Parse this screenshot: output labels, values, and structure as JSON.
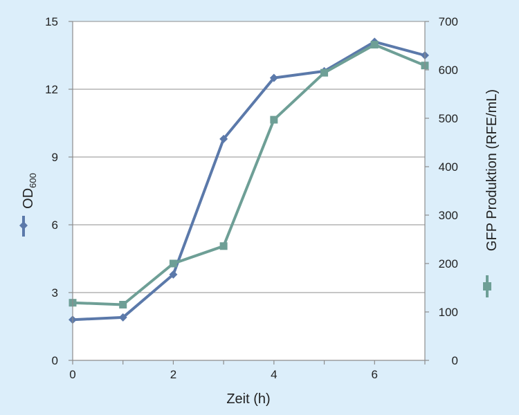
{
  "chart_data": {
    "type": "line",
    "title": "",
    "xlabel": "Zeit (h)",
    "xlim": [
      0,
      7
    ],
    "x_ticks": [
      0,
      2,
      4,
      6
    ],
    "ylabel_left": {
      "main": "OD",
      "sub": "600"
    },
    "ylim_left": [
      0,
      15
    ],
    "y_ticks_left": [
      0,
      3,
      6,
      9,
      12,
      15
    ],
    "ylabel_right": "GFP Produktion (RFE/mL)",
    "ylim_right": [
      0,
      700
    ],
    "y_ticks_right": [
      0,
      100,
      200,
      300,
      400,
      500,
      600,
      700
    ],
    "grid": true,
    "series": [
      {
        "axis": "left",
        "marker": "diamond",
        "color": "#5b79aa",
        "x": [
          0,
          1,
          2,
          3,
          4,
          5,
          6,
          7
        ],
        "y": [
          1.8,
          1.9,
          3.8,
          9.8,
          12.5,
          12.8,
          14.1,
          13.5
        ]
      },
      {
        "axis": "right",
        "marker": "square",
        "color": "#6e9f96",
        "x": [
          0,
          1,
          2,
          3,
          4,
          5,
          6,
          7
        ],
        "y": [
          119,
          115,
          200,
          236,
          497,
          594,
          652,
          609
        ]
      }
    ]
  }
}
